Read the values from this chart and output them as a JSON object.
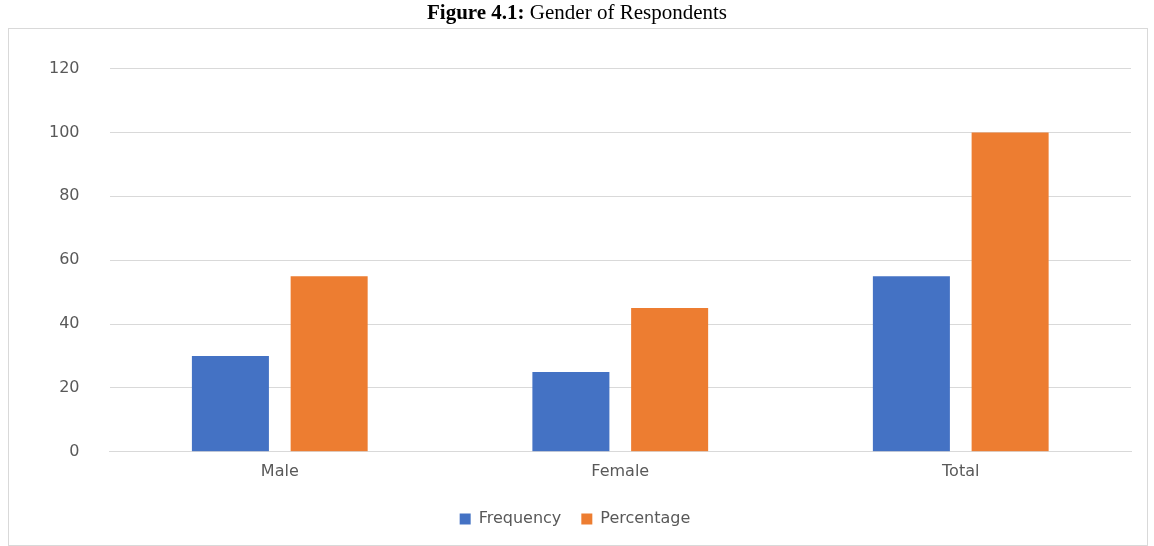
{
  "chart_data": {
    "type": "bar",
    "title": "Figure 4.1: Gender of Respondents",
    "categories": [
      "Male",
      "Female",
      "Total"
    ],
    "series": [
      {
        "name": "Frequency",
        "color": "#4472c4",
        "values": [
          30,
          25,
          55
        ]
      },
      {
        "name": "Percentage",
        "color": "#ed7d31",
        "values": [
          55,
          45,
          100
        ]
      }
    ],
    "ylim": [
      0,
      120
    ],
    "yticks": [
      0,
      20,
      40,
      60,
      80,
      100,
      120
    ],
    "grid": "y",
    "legend": "bottom"
  }
}
